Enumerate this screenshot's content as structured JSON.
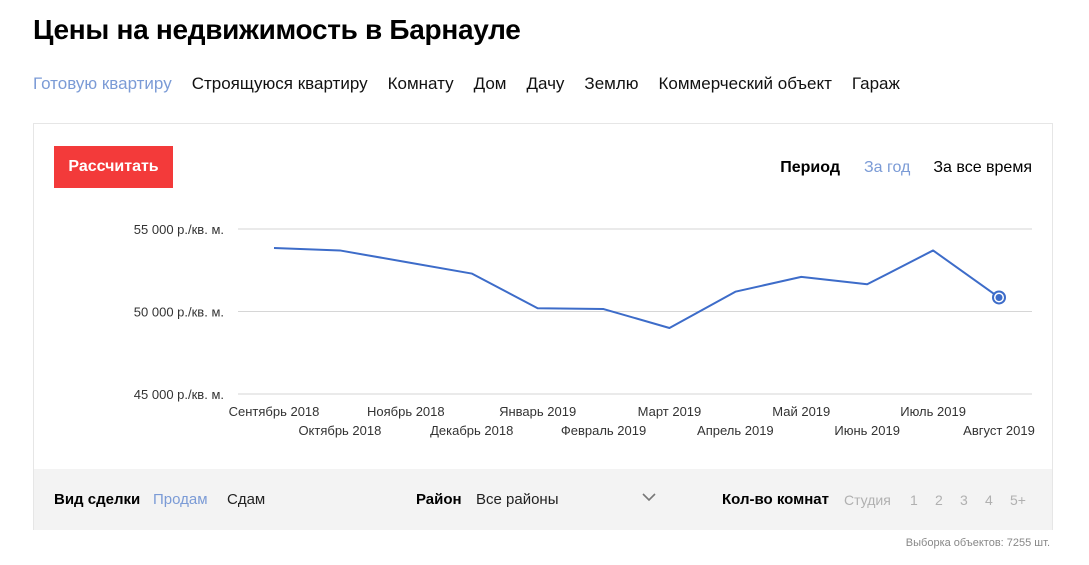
{
  "page": {
    "title": "Цены на недвижимость в Барнауле"
  },
  "tabs": [
    {
      "label": "Готовую квартиру",
      "active": true
    },
    {
      "label": "Строящуюся квартиру",
      "active": false
    },
    {
      "label": "Комнату",
      "active": false
    },
    {
      "label": "Дом",
      "active": false
    },
    {
      "label": "Дачу",
      "active": false
    },
    {
      "label": "Землю",
      "active": false
    },
    {
      "label": "Коммерческий объект",
      "active": false
    },
    {
      "label": "Гараж",
      "active": false
    }
  ],
  "toolbar": {
    "calc_label": "Рассчитать",
    "period_label": "Период",
    "period_year": "За год",
    "period_all": "За все время",
    "period_selected": "year"
  },
  "chart_data": {
    "type": "line",
    "x": [
      "Сентябрь 2018",
      "Октябрь 2018",
      "Ноябрь 2018",
      "Декабрь 2018",
      "Январь 2019",
      "Февраль 2019",
      "Март 2019",
      "Апрель 2019",
      "Май 2019",
      "Июнь 2019",
      "Июль 2019",
      "Август 2019"
    ],
    "series": [
      {
        "values": [
          53850,
          53700,
          53000,
          52300,
          50200,
          50150,
          49000,
          51200,
          52100,
          51650,
          53700,
          50850
        ],
        "color": "#3d6cc9"
      }
    ],
    "yticks": [
      45000,
      50000,
      55000
    ],
    "ytick_labels": [
      "45 000 р./кв. м.",
      "50 000 р./кв. м.",
      "55 000 р./кв. м."
    ],
    "ylim": [
      45000,
      55000
    ],
    "grid": true,
    "highlight_last_point": true
  },
  "filters": {
    "deal_label": "Вид сделки",
    "deal_sell": "Продам",
    "deal_rent": "Сдам",
    "district_label": "Район",
    "district_value": "Все районы",
    "rooms_label": "Кол-во комнат",
    "rooms": [
      "Студия",
      "1",
      "2",
      "3",
      "4",
      "5+"
    ]
  },
  "footer": {
    "count_text": "Выборка объектов: 7255 шт."
  },
  "colors": {
    "accent_link": "#7b9bd6",
    "button_red": "#f33a3a",
    "line_blue": "#3d6cc9"
  }
}
